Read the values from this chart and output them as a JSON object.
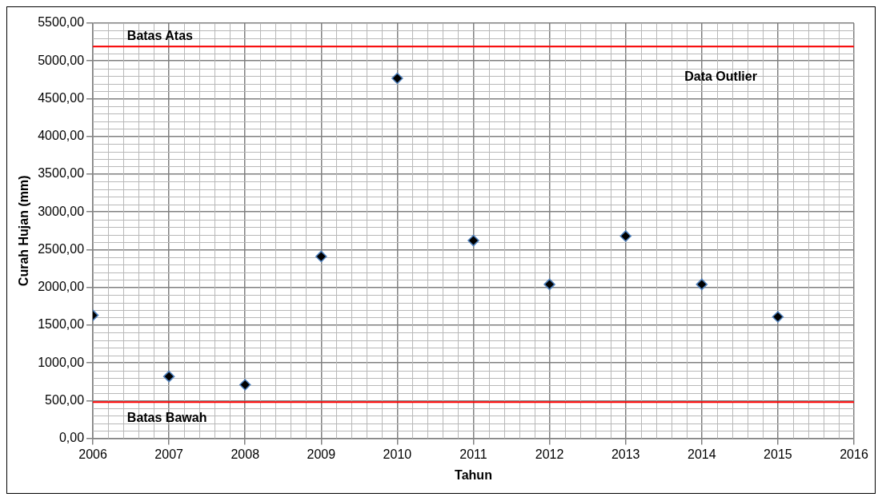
{
  "chart_data": {
    "type": "scatter",
    "xlabel": "Tahun",
    "ylabel": "Curah Hujan (mm)",
    "x": [
      2006,
      2007,
      2008,
      2009,
      2010,
      2011,
      2012,
      2013,
      2014,
      2015
    ],
    "series": [
      {
        "type": "scatter",
        "color": "#000000",
        "values": [
          1630,
          820,
          710,
          2410,
          4770,
          2620,
          2040,
          2680,
          2040,
          1610
        ]
      }
    ],
    "xlim": [
      2006,
      2016
    ],
    "xticks": [
      2006,
      2007,
      2008,
      2009,
      2010,
      2011,
      2012,
      2013,
      2014,
      2015,
      2016
    ],
    "ylim": [
      0,
      5500
    ],
    "yticks": [
      {
        "value": 0,
        "label": "0,00"
      },
      {
        "value": 500,
        "label": "500,00"
      },
      {
        "value": 1000,
        "label": "1000,00"
      },
      {
        "value": 1500,
        "label": "1500,00"
      },
      {
        "value": 2000,
        "label": "2000,00"
      },
      {
        "value": 2500,
        "label": "2500,00"
      },
      {
        "value": 3000,
        "label": "3000,00"
      },
      {
        "value": 3500,
        "label": "3500,00"
      },
      {
        "value": 4000,
        "label": "4000,00"
      },
      {
        "value": 4500,
        "label": "4500,00"
      },
      {
        "value": 5000,
        "label": "5000,00"
      },
      {
        "value": 5500,
        "label": "5500,00"
      }
    ],
    "ref_lines": [
      {
        "axis": "y",
        "value": 5190,
        "label": "Batas Atas",
        "color": "#ff0000"
      },
      {
        "axis": "y",
        "value": 480,
        "label": "Batas Bawah",
        "color": "#ff0000"
      }
    ],
    "annotations": [
      "Data Outlier"
    ],
    "grid": true,
    "legend": false,
    "marker": "diamond"
  }
}
